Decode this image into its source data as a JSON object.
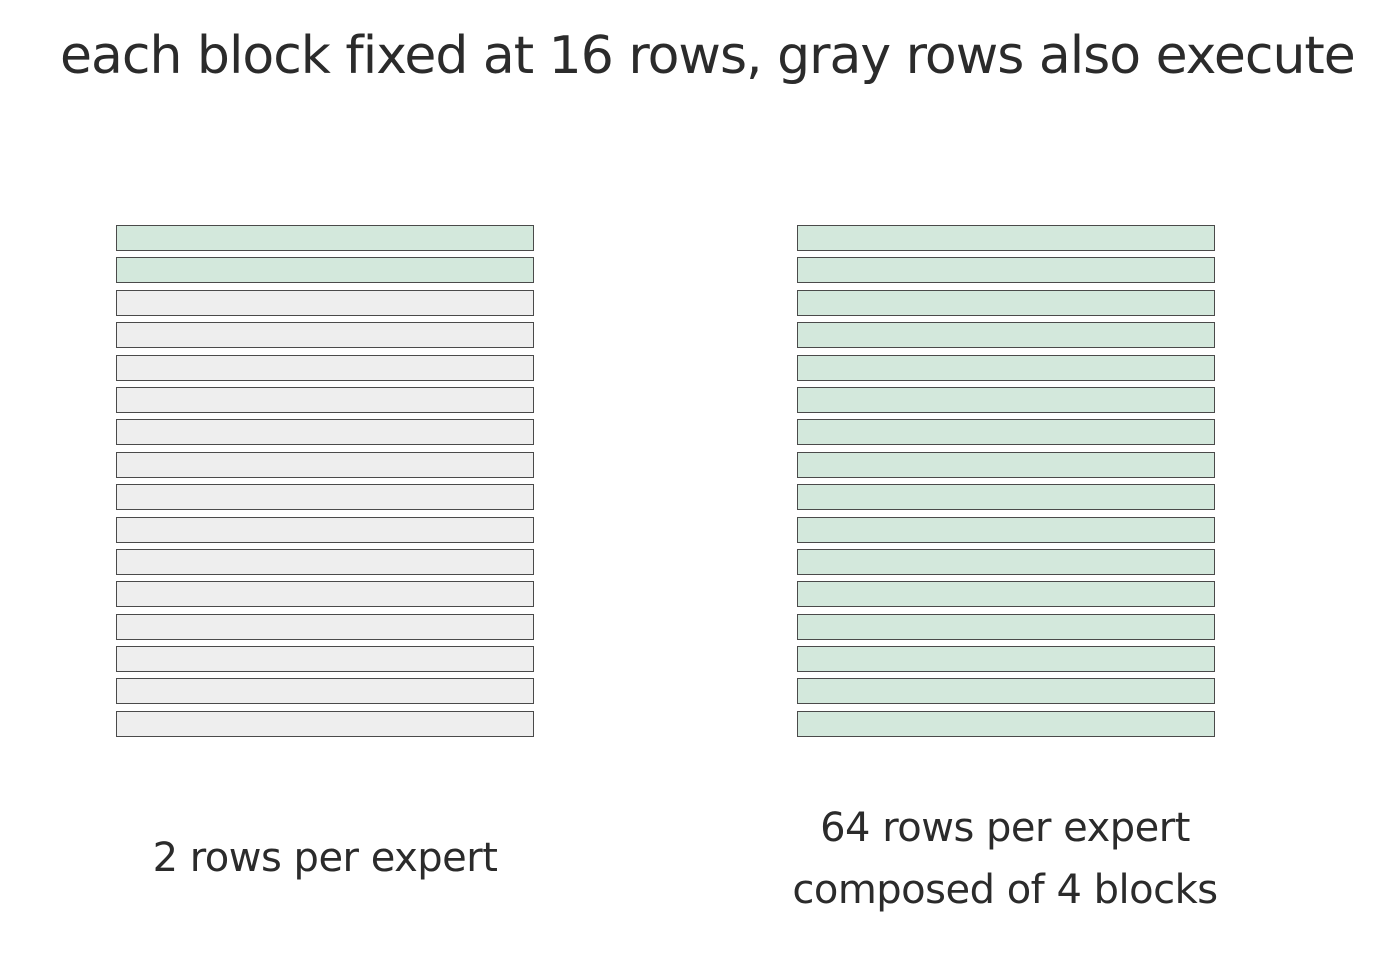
{
  "title": "each block fixed at 16 rows, gray rows also execute",
  "colors": {
    "active_row": "#d3e8dc",
    "idle_row": "#eeeeee",
    "row_border": "#4a4a4a"
  },
  "blocks": [
    {
      "caption_lines": [
        "2 rows per expert"
      ],
      "total_rows": 16,
      "active_rows": 2
    },
    {
      "caption_lines": [
        "64 rows per expert",
        "composed of 4 blocks"
      ],
      "total_rows": 16,
      "active_rows": 16
    }
  ]
}
